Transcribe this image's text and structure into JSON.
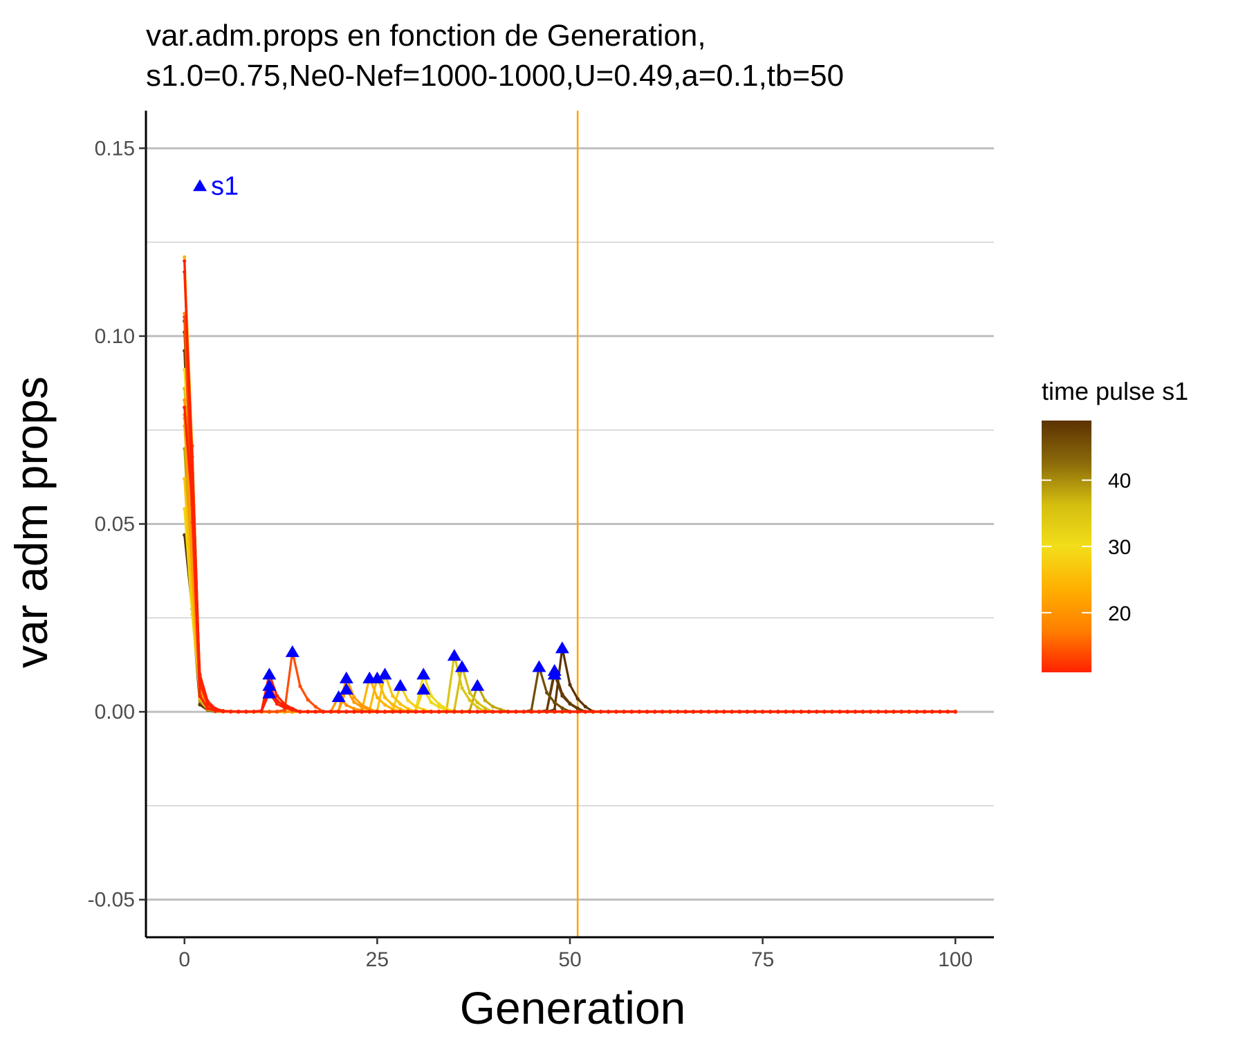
{
  "chart_data": {
    "type": "line",
    "title_line1": "var.adm.props en fonction de Generation,",
    "title_line2": "s1.0=0.75,Ne0-Nef=1000-1000,U=0.49,a=0.1,tb=50",
    "xlabel": "Generation",
    "ylabel": "var adm props",
    "xlim": [
      -5,
      105
    ],
    "ylim": [
      -0.06,
      0.16
    ],
    "x_ticks": [
      0,
      25,
      50,
      75,
      100
    ],
    "x_tick_labels": [
      "0",
      "25",
      "50",
      "75",
      "100"
    ],
    "y_ticks": [
      -0.05,
      0.0,
      0.05,
      0.1,
      0.15
    ],
    "y_tick_labels": [
      "-0.05",
      "0.00",
      "0.05",
      "0.10",
      "0.15"
    ],
    "y_minor_ticks": [
      -0.025,
      0.025,
      0.075,
      0.125
    ],
    "grid": "horizontal",
    "vline_x": 51,
    "vline_color": "#FFA500",
    "marker_color": "#0000FF",
    "annotation": {
      "text": "s1",
      "x": 2,
      "y": 0.14
    },
    "legend": {
      "title": "time pulse s1",
      "position": "right",
      "min": 11,
      "max": 49,
      "tick_values": [
        20,
        30,
        40
      ],
      "tick_labels": [
        "20",
        "30",
        "40"
      ],
      "gradient_colors": [
        "#FF2200",
        "#FF7F00",
        "#FFB000",
        "#F2DE1A",
        "#D4BE10",
        "#8A6A0A",
        "#5C3203"
      ]
    },
    "series": [
      {
        "pulse": 11,
        "y0": 0.12,
        "peak_y": 0.01
      },
      {
        "pulse": 11,
        "y0": 0.117,
        "peak_y": 0.007
      },
      {
        "pulse": 11,
        "y0": 0.081,
        "peak_y": 0.005
      },
      {
        "pulse": 14,
        "y0": 0.105,
        "peak_y": 0.016
      },
      {
        "pulse": 20,
        "y0": 0.106,
        "peak_y": 0.004
      },
      {
        "pulse": 21,
        "y0": 0.083,
        "peak_y": 0.009
      },
      {
        "pulse": 21,
        "y0": 0.079,
        "peak_y": 0.006
      },
      {
        "pulse": 24,
        "y0": 0.121,
        "peak_y": 0.009
      },
      {
        "pulse": 25,
        "y0": 0.078,
        "peak_y": 0.009
      },
      {
        "pulse": 26,
        "y0": 0.062,
        "peak_y": 0.01
      },
      {
        "pulse": 28,
        "y0": 0.083,
        "peak_y": 0.007
      },
      {
        "pulse": 31,
        "y0": 0.091,
        "peak_y": 0.01
      },
      {
        "pulse": 31,
        "y0": 0.054,
        "peak_y": 0.006
      },
      {
        "pulse": 35,
        "y0": 0.076,
        "peak_y": 0.015
      },
      {
        "pulse": 36,
        "y0": 0.086,
        "peak_y": 0.012
      },
      {
        "pulse": 38,
        "y0": 0.07,
        "peak_y": 0.007
      },
      {
        "pulse": 46,
        "y0": 0.101,
        "peak_y": 0.012
      },
      {
        "pulse": 48,
        "y0": 0.104,
        "peak_y": 0.011
      },
      {
        "pulse": 48,
        "y0": 0.096,
        "peak_y": 0.01
      },
      {
        "pulse": 49,
        "y0": 0.047,
        "peak_y": 0.017
      }
    ]
  }
}
